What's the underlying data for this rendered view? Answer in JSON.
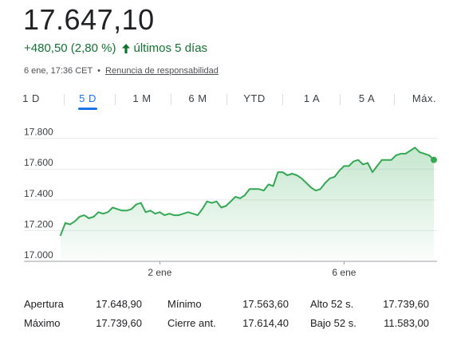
{
  "quote": {
    "price": "17.647,10",
    "change": "+480,50 (2,80 %)",
    "period": "últimos 5 días",
    "timestamp": "6 ene, 17:36 CET",
    "separator": "•",
    "disclaimer": "Renuncia de responsabilidad",
    "up_color": "#137333"
  },
  "tabs": [
    {
      "label": "1 D",
      "active": false
    },
    {
      "label": "5 D",
      "active": true
    },
    {
      "label": "1 M",
      "active": false
    },
    {
      "label": "6 M",
      "active": false
    },
    {
      "label": "YTD",
      "active": false
    },
    {
      "label": "1 A",
      "active": false
    },
    {
      "label": "5 A",
      "active": false
    },
    {
      "label": "Máx.",
      "active": false
    }
  ],
  "chart_data": {
    "type": "area",
    "line_color": "#34a853",
    "ylim": [
      17000,
      17850
    ],
    "yticks": [
      17800,
      17600,
      17400,
      17200,
      17000
    ],
    "ytick_labels": [
      "17.800",
      "17.600",
      "17.400",
      "17.200",
      "17.000"
    ],
    "xtick_labels": [
      "2 ene",
      "6 ene"
    ],
    "xtick_positions": [
      21,
      60
    ],
    "x_count": 80,
    "values": [
      17170,
      17250,
      17240,
      17260,
      17290,
      17300,
      17280,
      17290,
      17320,
      17310,
      17320,
      17350,
      17340,
      17330,
      17330,
      17340,
      17370,
      17380,
      17320,
      17330,
      17310,
      17320,
      17300,
      17310,
      17300,
      17300,
      17310,
      17320,
      17310,
      17300,
      17340,
      17390,
      17380,
      17390,
      17350,
      17360,
      17390,
      17420,
      17410,
      17430,
      17470,
      17470,
      17470,
      17460,
      17500,
      17490,
      17580,
      17580,
      17560,
      17570,
      17560,
      17540,
      17510,
      17480,
      17460,
      17470,
      17510,
      17540,
      17550,
      17590,
      17620,
      17620,
      17650,
      17660,
      17630,
      17640,
      17580,
      17620,
      17660,
      17660,
      17660,
      17690,
      17700,
      17700,
      17720,
      17740,
      17710,
      17700,
      17690,
      17660
    ],
    "grid": true
  },
  "stats": {
    "rows": [
      [
        {
          "label": "Apertura",
          "value": "17.648,90"
        },
        {
          "label": "Mínimo",
          "value": "17.563,60"
        },
        {
          "label": "Alto 52 s.",
          "value": "17.739,60"
        }
      ],
      [
        {
          "label": "Máximo",
          "value": "17.739,60"
        },
        {
          "label": "Cierre ant.",
          "value": "17.614,40"
        },
        {
          "label": "Bajo 52 s.",
          "value": "11.583,00"
        }
      ]
    ]
  }
}
